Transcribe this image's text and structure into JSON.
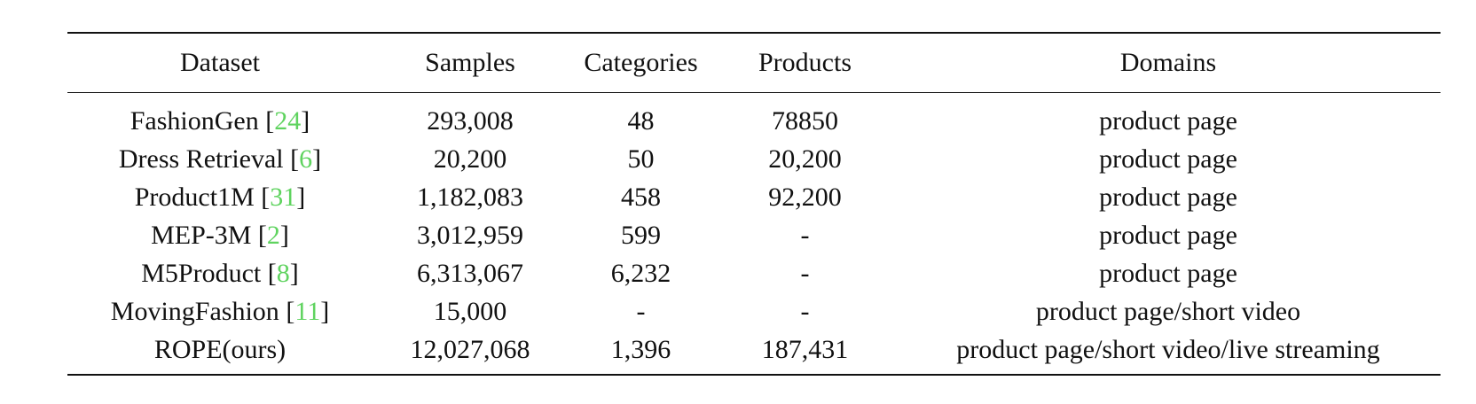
{
  "table": {
    "headers": [
      "Dataset",
      "Samples",
      "Categories",
      "Products",
      "Domains"
    ],
    "rows": [
      {
        "dataset": "FashionGen",
        "cite": "24",
        "samples": "293,008",
        "categories": "48",
        "products": "78850",
        "domains": "product page"
      },
      {
        "dataset": "Dress Retrieval",
        "cite": "6",
        "samples": "20,200",
        "categories": "50",
        "products": "20,200",
        "domains": "product page"
      },
      {
        "dataset": "Product1M",
        "cite": "31",
        "samples": "1,182,083",
        "categories": "458",
        "products": "92,200",
        "domains": "product page"
      },
      {
        "dataset": "MEP-3M",
        "cite": "2",
        "samples": "3,012,959",
        "categories": "599",
        "products": "-",
        "domains": "product page"
      },
      {
        "dataset": "M5Product",
        "cite": "8",
        "samples": "6,313,067",
        "categories": "6,232",
        "products": "-",
        "domains": "product page"
      },
      {
        "dataset": "MovingFashion",
        "cite": "11",
        "samples": "15,000",
        "categories": "-",
        "products": "-",
        "domains": "product page/short video"
      },
      {
        "dataset": "ROPE(ours)",
        "cite": "",
        "samples": "12,027,068",
        "categories": "1,396",
        "products": "187,431",
        "domains": "product page/short video/live streaming"
      }
    ]
  },
  "colors": {
    "citation": "#5fd35f",
    "text": "#111111",
    "rule": "#111111"
  }
}
